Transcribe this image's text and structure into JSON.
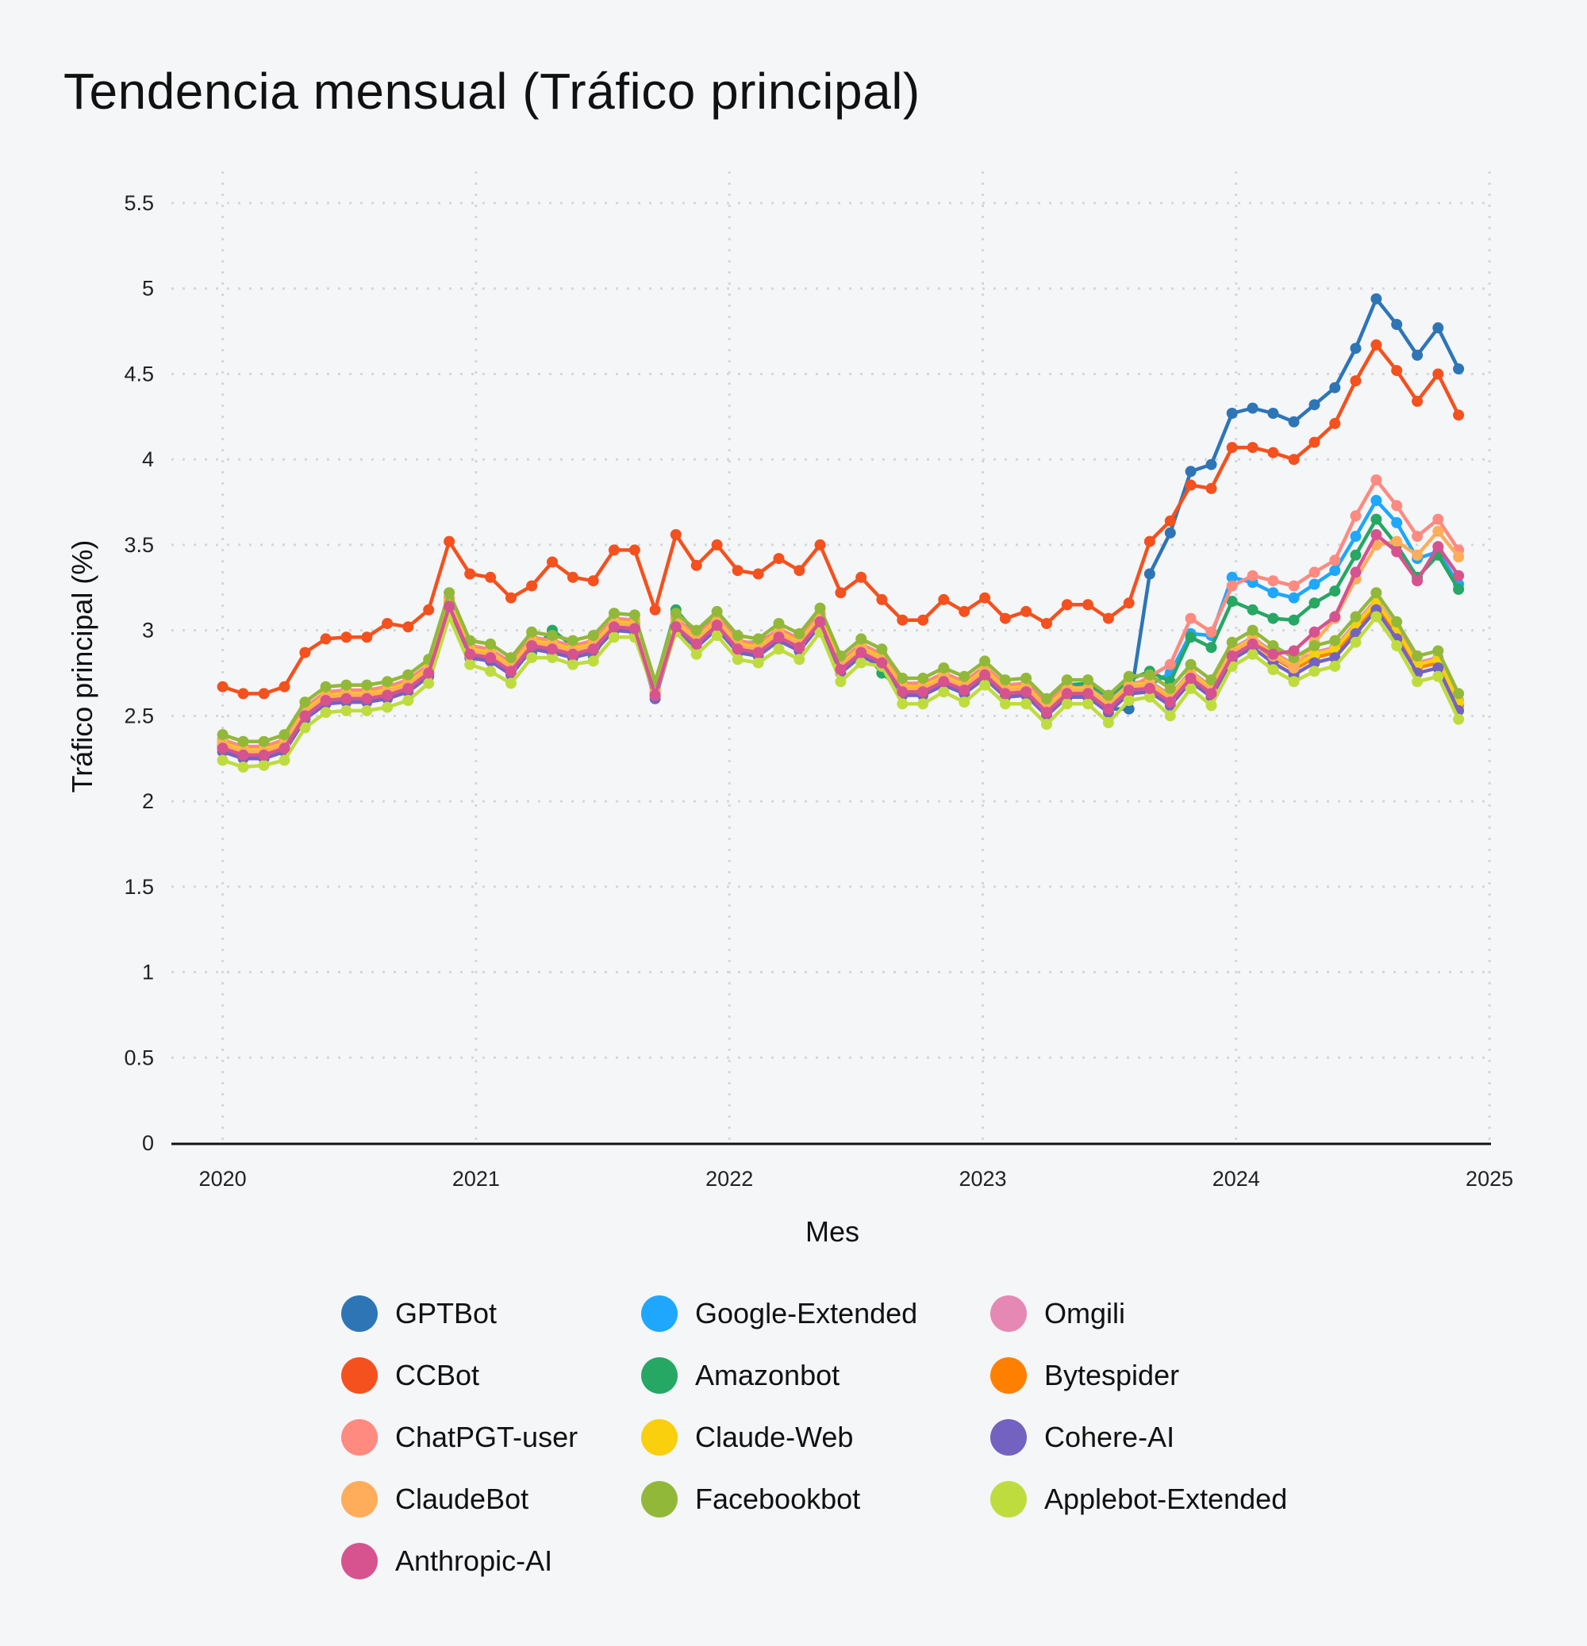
{
  "chart_data": {
    "type": "line",
    "title": "Tendencia mensual (Tráfico principal)",
    "xlabel": "Mes",
    "ylabel": "Tráfico principal (%)",
    "xlim": [
      2020,
      2025
    ],
    "ylim": [
      0,
      5.5
    ],
    "x_ticks": [
      "2020",
      "2021",
      "2022",
      "2023",
      "2024",
      "2025"
    ],
    "y_ticks": [
      "0",
      "0.5",
      "1",
      "1.5",
      "2",
      "2.5",
      "3",
      "3.5",
      "4",
      "4.5",
      "5",
      "5.5"
    ],
    "grid": true,
    "grid_style": "dotted",
    "markers": true,
    "legend_position": "bottom",
    "x": [
      2020.0,
      2020.081,
      2020.163,
      2020.244,
      2020.325,
      2020.407,
      2020.488,
      2020.569,
      2020.65,
      2020.732,
      2020.813,
      2020.894,
      2020.976,
      2021.057,
      2021.138,
      2021.22,
      2021.301,
      2021.382,
      2021.463,
      2021.545,
      2021.626,
      2021.707,
      2021.789,
      2021.87,
      2021.951,
      2022.033,
      2022.114,
      2022.195,
      2022.276,
      2022.358,
      2022.439,
      2022.52,
      2022.602,
      2022.683,
      2022.764,
      2022.846,
      2022.927,
      2023.008,
      2023.089,
      2023.171,
      2023.252,
      2023.333,
      2023.415,
      2023.496,
      2023.577,
      2023.659,
      2023.74,
      2023.821,
      2023.902,
      2023.984,
      2024.065,
      2024.146,
      2024.228,
      2024.309,
      2024.39,
      2024.472,
      2024.553,
      2024.634,
      2024.715,
      2024.797,
      2024.878
    ],
    "series": [
      {
        "name": "GPTBot",
        "color": "#2e75b6",
        "values": [
          2.31,
          2.27,
          2.27,
          2.31,
          2.5,
          2.59,
          2.6,
          2.6,
          2.62,
          2.66,
          2.75,
          3.14,
          2.86,
          2.84,
          2.76,
          2.91,
          2.89,
          2.86,
          2.89,
          3.02,
          3.01,
          2.62,
          3.02,
          2.92,
          3.03,
          2.89,
          2.87,
          2.96,
          2.9,
          3.05,
          2.77,
          2.87,
          2.81,
          2.64,
          2.64,
          2.7,
          2.65,
          2.74,
          2.63,
          2.64,
          2.52,
          2.63,
          2.63,
          2.54,
          2.54,
          3.33,
          3.57,
          3.93,
          3.97,
          4.27,
          4.3,
          4.27,
          4.22,
          4.32,
          4.42,
          4.65,
          4.94,
          4.79,
          4.61,
          4.77,
          4.53
        ]
      },
      {
        "name": "Google-Extended",
        "color": "#1ea7fd",
        "values": [
          2.33,
          2.29,
          2.29,
          2.33,
          2.52,
          2.61,
          2.62,
          2.62,
          2.64,
          2.68,
          2.77,
          3.16,
          2.88,
          2.86,
          2.78,
          2.93,
          2.91,
          2.88,
          2.91,
          3.04,
          3.03,
          2.64,
          3.04,
          2.94,
          3.05,
          2.91,
          2.89,
          2.98,
          2.92,
          3.07,
          2.79,
          2.89,
          2.83,
          2.66,
          2.66,
          2.72,
          2.67,
          2.76,
          2.65,
          2.66,
          2.54,
          2.65,
          2.65,
          2.56,
          2.67,
          2.68,
          2.75,
          2.98,
          2.97,
          3.31,
          3.28,
          3.22,
          3.19,
          3.27,
          3.35,
          3.55,
          3.76,
          3.63,
          3.42,
          3.46,
          3.27
        ]
      },
      {
        "name": "Omgili",
        "color": "#e688b4",
        "values": [
          2.35,
          2.31,
          2.31,
          2.35,
          2.54,
          2.63,
          2.64,
          2.64,
          2.66,
          2.7,
          2.79,
          3.18,
          2.9,
          2.88,
          2.8,
          2.95,
          2.93,
          2.9,
          2.93,
          3.06,
          3.05,
          2.66,
          3.06,
          2.96,
          3.07,
          2.93,
          2.91,
          3.0,
          2.94,
          3.09,
          2.81,
          2.91,
          2.85,
          2.68,
          2.68,
          2.74,
          2.69,
          2.78,
          2.67,
          2.68,
          2.56,
          2.67,
          2.67,
          2.58,
          2.69,
          2.7,
          2.62,
          2.76,
          2.67,
          2.89,
          2.96,
          2.87,
          2.8,
          2.87,
          2.9,
          3.04,
          3.18,
          3.01,
          2.81,
          2.84,
          2.59
        ]
      },
      {
        "name": "CCBot",
        "color": "#f4511e",
        "values": [
          2.67,
          2.63,
          2.63,
          2.67,
          2.87,
          2.95,
          2.96,
          2.96,
          3.04,
          3.02,
          3.12,
          3.52,
          3.33,
          3.31,
          3.19,
          3.26,
          3.4,
          3.31,
          3.29,
          3.47,
          3.47,
          3.12,
          3.56,
          3.38,
          3.5,
          3.35,
          3.33,
          3.42,
          3.35,
          3.5,
          3.22,
          3.31,
          3.18,
          3.06,
          3.06,
          3.18,
          3.11,
          3.19,
          3.07,
          3.11,
          3.04,
          3.15,
          3.15,
          3.07,
          3.16,
          3.52,
          3.64,
          3.85,
          3.83,
          4.07,
          4.07,
          4.04,
          4.0,
          4.1,
          4.21,
          4.46,
          4.67,
          4.52,
          4.34,
          4.5,
          4.26
        ]
      },
      {
        "name": "Amazonbot",
        "color": "#26a764",
        "values": [
          2.33,
          2.29,
          2.29,
          2.33,
          2.52,
          2.61,
          2.62,
          2.62,
          2.64,
          2.68,
          2.77,
          3.09,
          2.9,
          2.89,
          2.8,
          2.87,
          3.0,
          2.91,
          2.85,
          3.04,
          3.04,
          2.69,
          3.12,
          2.98,
          3.08,
          2.93,
          2.93,
          3.0,
          2.94,
          3.09,
          2.81,
          2.9,
          2.75,
          2.65,
          2.65,
          2.76,
          2.67,
          2.79,
          2.65,
          2.69,
          2.59,
          2.68,
          2.69,
          2.61,
          2.71,
          2.76,
          2.7,
          2.96,
          2.9,
          3.17,
          3.12,
          3.07,
          3.06,
          3.16,
          3.23,
          3.44,
          3.65,
          3.5,
          3.31,
          3.44,
          3.24
        ]
      },
      {
        "name": "Bytespider",
        "color": "#ff8000",
        "values": [
          2.32,
          2.28,
          2.28,
          2.32,
          2.51,
          2.6,
          2.61,
          2.61,
          2.63,
          2.67,
          2.76,
          3.15,
          2.87,
          2.85,
          2.77,
          2.92,
          2.9,
          2.87,
          2.9,
          3.03,
          3.02,
          2.63,
          3.03,
          2.93,
          3.04,
          2.9,
          2.88,
          2.97,
          2.91,
          3.06,
          2.78,
          2.88,
          2.82,
          2.65,
          2.65,
          2.71,
          2.66,
          2.75,
          2.64,
          2.65,
          2.53,
          2.64,
          2.64,
          2.55,
          2.66,
          2.67,
          2.59,
          2.73,
          2.64,
          2.86,
          2.93,
          2.84,
          2.77,
          2.84,
          2.87,
          3.01,
          3.15,
          2.98,
          2.78,
          2.81,
          2.56
        ]
      },
      {
        "name": "ChatPGT-user",
        "color": "#ff8a80",
        "values": [
          2.36,
          2.32,
          2.32,
          2.36,
          2.55,
          2.64,
          2.65,
          2.65,
          2.67,
          2.71,
          2.8,
          3.19,
          2.91,
          2.89,
          2.81,
          2.96,
          2.94,
          2.91,
          2.94,
          3.07,
          3.06,
          2.67,
          3.07,
          2.97,
          3.08,
          2.94,
          2.92,
          3.01,
          2.95,
          3.1,
          2.82,
          2.92,
          2.86,
          2.69,
          2.69,
          2.75,
          2.7,
          2.79,
          2.68,
          2.69,
          2.57,
          2.68,
          2.64,
          2.57,
          2.66,
          2.73,
          2.8,
          3.07,
          2.99,
          3.26,
          3.32,
          3.29,
          3.26,
          3.34,
          3.41,
          3.67,
          3.88,
          3.73,
          3.55,
          3.65,
          3.47
        ]
      },
      {
        "name": "Claude-Web",
        "color": "#f9cf0e",
        "values": [
          2.34,
          2.3,
          2.3,
          2.34,
          2.53,
          2.62,
          2.63,
          2.63,
          2.65,
          2.69,
          2.78,
          3.17,
          2.89,
          2.87,
          2.79,
          2.94,
          2.92,
          2.89,
          2.92,
          3.05,
          3.04,
          2.65,
          3.05,
          2.95,
          3.06,
          2.92,
          2.9,
          2.99,
          2.93,
          3.08,
          2.8,
          2.9,
          2.84,
          2.67,
          2.67,
          2.73,
          2.68,
          2.77,
          2.66,
          2.67,
          2.55,
          2.66,
          2.66,
          2.57,
          2.68,
          2.69,
          2.61,
          2.75,
          2.66,
          2.88,
          2.95,
          2.86,
          2.79,
          2.86,
          2.89,
          3.03,
          3.17,
          3.0,
          2.8,
          2.83,
          2.58
        ]
      },
      {
        "name": "Cohere-AI",
        "color": "#7462c0",
        "values": [
          2.29,
          2.25,
          2.25,
          2.29,
          2.48,
          2.57,
          2.58,
          2.58,
          2.6,
          2.64,
          2.73,
          3.12,
          2.84,
          2.82,
          2.74,
          2.89,
          2.87,
          2.84,
          2.87,
          3.0,
          2.99,
          2.6,
          3.0,
          2.9,
          3.01,
          2.87,
          2.85,
          2.94,
          2.88,
          3.03,
          2.75,
          2.85,
          2.79,
          2.62,
          2.62,
          2.68,
          2.63,
          2.72,
          2.61,
          2.62,
          2.5,
          2.61,
          2.61,
          2.52,
          2.63,
          2.64,
          2.56,
          2.7,
          2.61,
          2.83,
          2.9,
          2.81,
          2.74,
          2.81,
          2.84,
          2.98,
          3.12,
          2.95,
          2.75,
          2.78,
          2.53
        ]
      },
      {
        "name": "ClaudeBot",
        "color": "#ffad5a",
        "values": [
          2.33,
          2.29,
          2.29,
          2.33,
          2.52,
          2.61,
          2.62,
          2.62,
          2.64,
          2.68,
          2.77,
          3.16,
          2.88,
          2.86,
          2.78,
          2.93,
          2.91,
          2.88,
          2.91,
          3.04,
          3.03,
          2.64,
          3.04,
          2.94,
          3.05,
          2.91,
          2.89,
          2.98,
          2.92,
          3.07,
          2.79,
          2.89,
          2.83,
          2.66,
          2.66,
          2.72,
          2.67,
          2.76,
          2.65,
          2.66,
          2.54,
          2.65,
          2.65,
          2.56,
          2.67,
          2.68,
          2.6,
          2.74,
          2.65,
          2.87,
          2.94,
          2.85,
          2.78,
          2.93,
          3.07,
          3.3,
          3.5,
          3.52,
          3.44,
          3.58,
          3.43
        ]
      },
      {
        "name": "Facebookbot",
        "color": "#92b83a",
        "values": [
          2.39,
          2.35,
          2.35,
          2.39,
          2.58,
          2.67,
          2.68,
          2.68,
          2.7,
          2.74,
          2.83,
          3.22,
          2.94,
          2.92,
          2.84,
          2.99,
          2.97,
          2.94,
          2.97,
          3.1,
          3.09,
          2.7,
          3.1,
          3.0,
          3.11,
          2.97,
          2.95,
          3.04,
          2.98,
          3.13,
          2.85,
          2.95,
          2.89,
          2.72,
          2.72,
          2.78,
          2.73,
          2.82,
          2.71,
          2.72,
          2.6,
          2.71,
          2.71,
          2.62,
          2.73,
          2.74,
          2.66,
          2.8,
          2.71,
          2.93,
          3.0,
          2.91,
          2.84,
          2.91,
          2.94,
          3.08,
          3.22,
          3.05,
          2.85,
          2.88,
          2.63
        ]
      },
      {
        "name": "Applebot-Extended",
        "color": "#bfdc3e",
        "values": [
          2.24,
          2.2,
          2.21,
          2.24,
          2.43,
          2.52,
          2.53,
          2.53,
          2.55,
          2.59,
          2.69,
          3.08,
          2.8,
          2.76,
          2.69,
          2.84,
          2.84,
          2.8,
          2.82,
          2.96,
          2.96,
          2.62,
          2.99,
          2.86,
          2.97,
          2.83,
          2.81,
          2.89,
          2.83,
          2.99,
          2.7,
          2.81,
          2.79,
          2.57,
          2.57,
          2.64,
          2.58,
          2.68,
          2.57,
          2.57,
          2.45,
          2.57,
          2.57,
          2.46,
          2.59,
          2.61,
          2.5,
          2.66,
          2.56,
          2.79,
          2.86,
          2.77,
          2.7,
          2.76,
          2.79,
          2.93,
          3.08,
          2.91,
          2.7,
          2.73,
          2.48
        ]
      },
      {
        "name": "Anthropic-AI",
        "color": "#d6538f",
        "values": [
          2.31,
          2.27,
          2.27,
          2.31,
          2.5,
          2.59,
          2.6,
          2.6,
          2.62,
          2.66,
          2.75,
          3.14,
          2.86,
          2.84,
          2.76,
          2.91,
          2.89,
          2.86,
          2.89,
          3.02,
          3.01,
          2.62,
          3.02,
          2.92,
          3.03,
          2.89,
          2.87,
          2.96,
          2.9,
          3.05,
          2.77,
          2.87,
          2.81,
          2.64,
          2.64,
          2.7,
          2.65,
          2.74,
          2.63,
          2.64,
          2.52,
          2.63,
          2.63,
          2.54,
          2.65,
          2.66,
          2.58,
          2.72,
          2.63,
          2.85,
          2.92,
          2.86,
          2.88,
          2.99,
          3.08,
          3.34,
          3.56,
          3.46,
          3.29,
          3.49,
          3.32
        ]
      }
    ]
  }
}
